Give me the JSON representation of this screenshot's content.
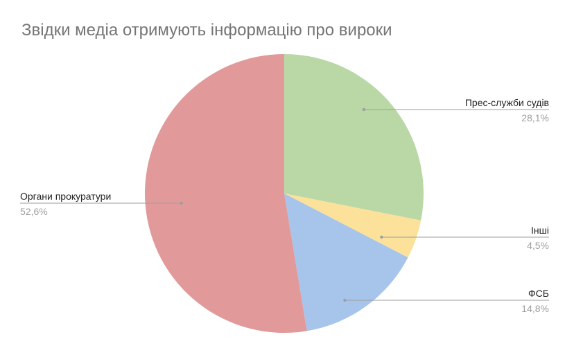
{
  "chart_data": {
    "type": "pie",
    "title": "Звідки медіа отримують інформацію про вироки",
    "slices": [
      {
        "label": "Прес-служби судів",
        "value": 28.1,
        "display": "28,1%",
        "color": "#b9d8a6"
      },
      {
        "label": "Інші",
        "value": 4.5,
        "display": "4,5%",
        "color": "#fbe199"
      },
      {
        "label": "ФСБ",
        "value": 14.8,
        "display": "14,8%",
        "color": "#a7c5eb"
      },
      {
        "label": "Органи прокуратури",
        "value": 52.6,
        "display": "52,6%",
        "color": "#e19999"
      }
    ],
    "legend": "none"
  }
}
